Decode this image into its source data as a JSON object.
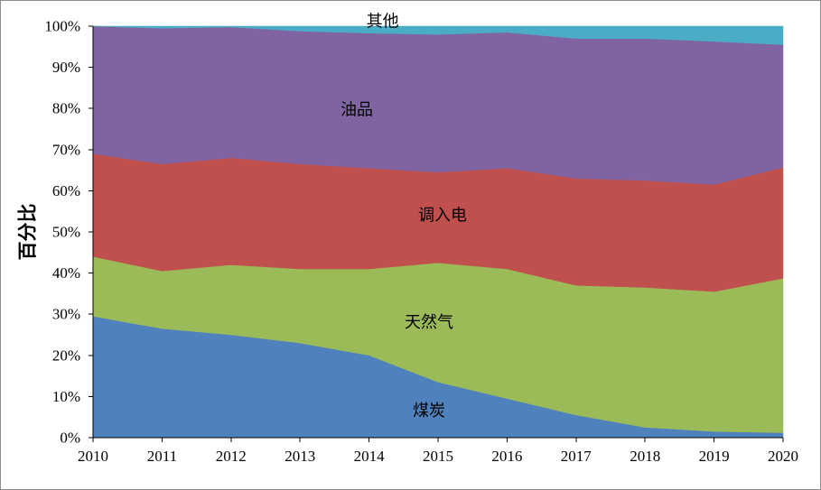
{
  "chart_data": {
    "type": "area",
    "stacked": true,
    "ylabel": "百分比",
    "xlabel": "",
    "ylim": [
      0,
      100
    ],
    "y_tick_format": "%",
    "y_ticks": [
      0,
      10,
      20,
      30,
      40,
      50,
      60,
      70,
      80,
      90,
      100
    ],
    "y_tick_labels": [
      "0%",
      "10%",
      "20%",
      "30%",
      "40%",
      "50%",
      "60%",
      "70%",
      "80%",
      "90%",
      "100%"
    ],
    "x": [
      "2010",
      "2011",
      "2012",
      "2013",
      "2014",
      "2015",
      "2016",
      "2017",
      "2018",
      "2019",
      "2020"
    ],
    "grid": false,
    "legend": "none",
    "series": [
      {
        "name": "煤炭",
        "color": "#4f81bd",
        "values": [
          29.5,
          26.5,
          25.0,
          23.0,
          20.0,
          13.5,
          9.5,
          5.5,
          2.5,
          1.5,
          1.2
        ]
      },
      {
        "name": "天然气",
        "color": "#9bbb59",
        "values": [
          14.5,
          14.0,
          17.0,
          18.0,
          21.0,
          29.0,
          31.5,
          31.5,
          34.0,
          34.0,
          37.5
        ]
      },
      {
        "name": "调入电",
        "color": "#c0504d",
        "values": [
          25.0,
          26.0,
          26.0,
          25.5,
          24.5,
          22.0,
          24.5,
          26.0,
          26.0,
          26.0,
          27.0
        ]
      },
      {
        "name": "油品",
        "color": "#8064a2",
        "values": [
          31.0,
          33.0,
          31.8,
          32.3,
          32.8,
          33.5,
          33.0,
          34.0,
          34.5,
          34.8,
          29.8
        ]
      },
      {
        "name": "其他",
        "color": "#4bacc6",
        "values": [
          0.0,
          0.5,
          0.2,
          1.2,
          1.7,
          2.0,
          1.5,
          3.0,
          3.0,
          3.7,
          4.5
        ]
      }
    ]
  }
}
